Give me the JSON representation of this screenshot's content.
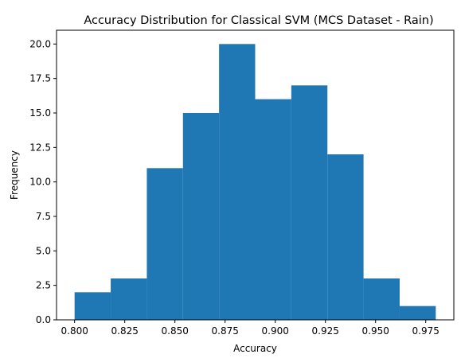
{
  "chart_data": {
    "type": "bar",
    "title": "Accuracy Distribution for Classical SVM (MCS Dataset - Rain)",
    "xlabel": "Accuracy",
    "ylabel": "Frequency",
    "xlim": [
      0.791,
      0.989
    ],
    "ylim": [
      0,
      21
    ],
    "bar_color": "#1f77b4",
    "bins": [
      {
        "start": 0.8,
        "end": 0.818,
        "count": 2
      },
      {
        "start": 0.818,
        "end": 0.836,
        "count": 3
      },
      {
        "start": 0.836,
        "end": 0.854,
        "count": 11
      },
      {
        "start": 0.854,
        "end": 0.872,
        "count": 15
      },
      {
        "start": 0.872,
        "end": 0.89,
        "count": 20
      },
      {
        "start": 0.89,
        "end": 0.908,
        "count": 16
      },
      {
        "start": 0.908,
        "end": 0.926,
        "count": 17
      },
      {
        "start": 0.926,
        "end": 0.944,
        "count": 12
      },
      {
        "start": 0.944,
        "end": 0.962,
        "count": 3
      },
      {
        "start": 0.962,
        "end": 0.98,
        "count": 1
      }
    ],
    "xticks": [
      0.8,
      0.825,
      0.85,
      0.875,
      0.9,
      0.925,
      0.95,
      0.975
    ],
    "xtick_labels": [
      "0.800",
      "0.825",
      "0.850",
      "0.875",
      "0.900",
      "0.925",
      "0.950",
      "0.975"
    ],
    "yticks": [
      0,
      2.5,
      5,
      7.5,
      10,
      12.5,
      15,
      17.5,
      20
    ],
    "ytick_labels": [
      "0.0",
      "2.5",
      "5.0",
      "7.5",
      "10.0",
      "12.5",
      "15.0",
      "17.5",
      "20.0"
    ]
  }
}
